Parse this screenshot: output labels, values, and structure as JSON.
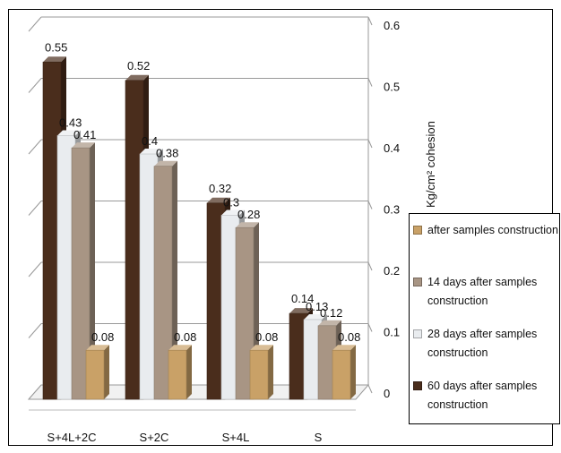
{
  "chart_data": {
    "type": "bar",
    "categories": [
      "S+4L+2C",
      "S+2C",
      "S+4L",
      "S"
    ],
    "series": [
      {
        "name": "60 days after samples construction",
        "values": [
          0.55,
          0.52,
          0.32,
          0.14
        ],
        "color": "#4a2d1c"
      },
      {
        "name": "28 days after samples construction",
        "values": [
          0.43,
          0.4,
          0.3,
          0.13
        ],
        "color": "#e9ecef"
      },
      {
        "name": "14 days after samples construction",
        "values": [
          0.41,
          0.38,
          0.28,
          0.12
        ],
        "color": "#a89584"
      },
      {
        "name": "after samples construction",
        "values": [
          0.08,
          0.08,
          0.08,
          0.08
        ],
        "color": "#c9a167"
      }
    ],
    "series_order_in_cluster": [
      0,
      1,
      2,
      3
    ],
    "data_labels": [
      [
        "0.55",
        "0.43",
        "0.41",
        "0.08"
      ],
      [
        "0.52",
        "0.4",
        "0.38",
        "0.08"
      ],
      [
        "0.32",
        "0.3",
        "0.28",
        "0.08"
      ],
      [
        "0.14",
        "0.13",
        "0.12",
        "0.08"
      ]
    ],
    "yticks": [
      "0",
      "0.1",
      "0.2",
      "0.3",
      "0.4",
      "0.5",
      "0.6"
    ],
    "ylim": [
      0,
      0.6
    ],
    "ylabel": "Kg/cm²   cohesion",
    "yaxis_side": "right",
    "grid": true,
    "legend_position": "right",
    "legend_order": [
      3,
      2,
      1,
      0
    ]
  }
}
